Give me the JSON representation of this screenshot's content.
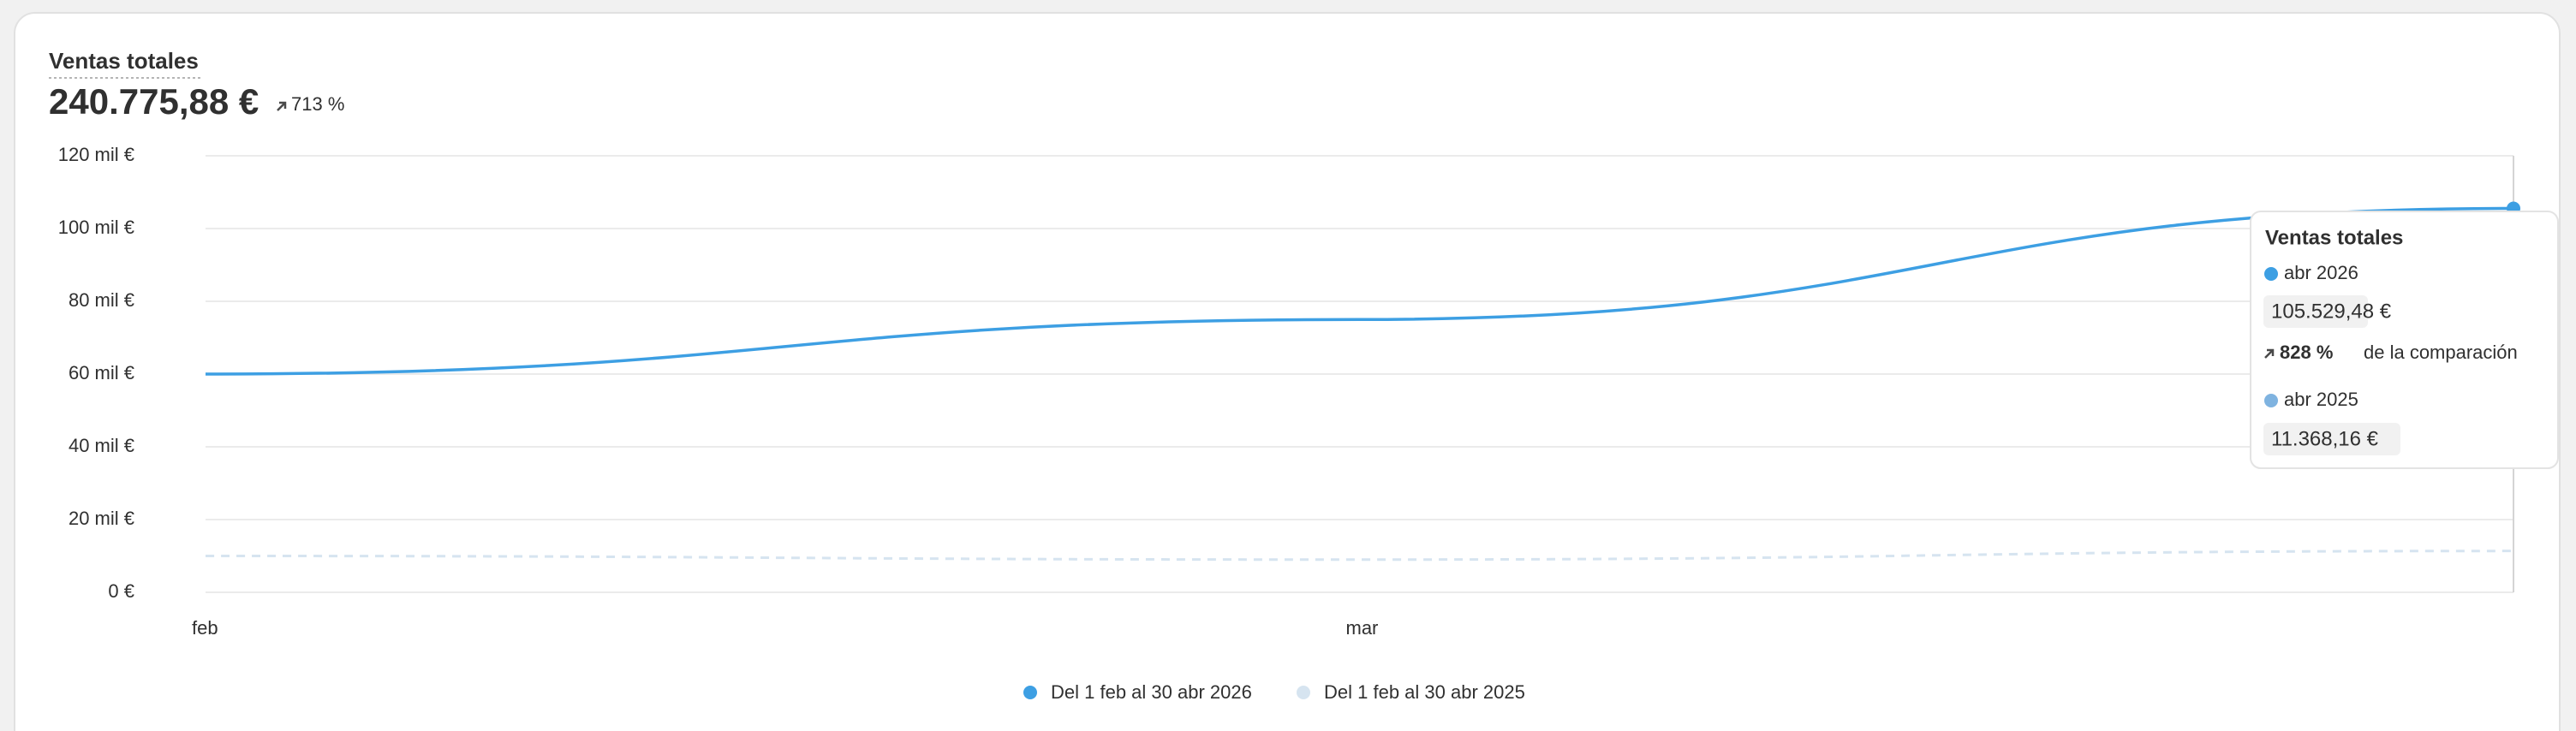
{
  "header": {
    "title": "Ventas totales",
    "total": "240.775,88 €",
    "change": "713 %"
  },
  "chart_data": {
    "type": "line",
    "categories": [
      "feb",
      "mar",
      null
    ],
    "series": [
      {
        "name": "Del 1 feb al 30 abr 2026",
        "color": "#3d9fe3",
        "values": [
          60000,
          75000,
          105529.48
        ],
        "value_labels": [
          null,
          null,
          "105.529,48 €"
        ]
      },
      {
        "name": "Del 1 feb al 30 abr 2025",
        "color": "#d6e4f0",
        "values": [
          10000,
          9000,
          11368.16
        ],
        "value_labels": [
          null,
          null,
          "11.368,16 €"
        ]
      }
    ],
    "ylim": [
      0,
      120000
    ],
    "yticks": [
      {
        "value": 0,
        "label": "0 €"
      },
      {
        "value": 20000,
        "label": "20 mil €"
      },
      {
        "value": 40000,
        "label": "40 mil €"
      },
      {
        "value": 60000,
        "label": "60 mil €"
      },
      {
        "value": 80000,
        "label": "80 mil €"
      },
      {
        "value": 100000,
        "label": "100 mil €"
      },
      {
        "value": 120000,
        "label": "120 mil €"
      }
    ],
    "grid": true
  },
  "tooltip": {
    "title": "Ventas totales",
    "current_period": "abr 2026",
    "change": "828 %",
    "change_text": "de la comparación",
    "previous_period": "abr 2025"
  }
}
